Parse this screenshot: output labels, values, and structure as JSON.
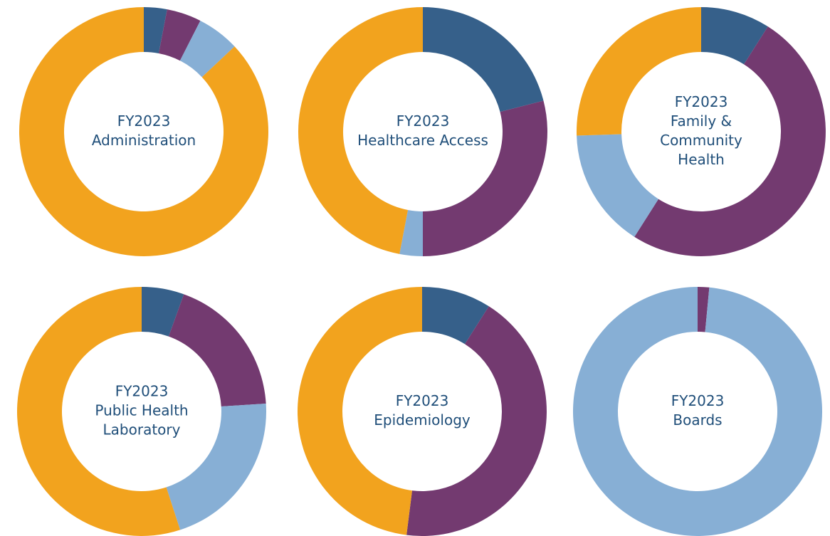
{
  "chart_data": [
    {
      "type": "donut",
      "title": [
        "FY2023",
        "Administration"
      ],
      "values": [
        3,
        4.5,
        5.5,
        87
      ],
      "colors": [
        "#36608a",
        "#733a70",
        "#87afd5",
        "#f2a31e"
      ]
    },
    {
      "type": "donut",
      "title": [
        "FY2023",
        "Healthcare Access"
      ],
      "values": [
        21,
        29,
        3,
        47
      ],
      "colors": [
        "#36608a",
        "#733a70",
        "#87afd5",
        "#f2a31e"
      ]
    },
    {
      "type": "donut",
      "title": [
        "FY2023",
        "Family &",
        "Community",
        "Health"
      ],
      "values": [
        9,
        50,
        15.5,
        25.5
      ],
      "colors": [
        "#36608a",
        "#733a70",
        "#87afd5",
        "#f2a31e"
      ]
    },
    {
      "type": "donut",
      "title": [
        "FY2023",
        "Public Health",
        "Laboratory"
      ],
      "values": [
        5.5,
        18.5,
        21,
        55
      ],
      "colors": [
        "#36608a",
        "#733a70",
        "#87afd5",
        "#f2a31e"
      ]
    },
    {
      "type": "donut",
      "title": [
        "FY2023",
        "Epidemiology"
      ],
      "values": [
        9,
        43,
        0,
        48
      ],
      "colors": [
        "#36608a",
        "#733a70",
        "#87afd5",
        "#f2a31e"
      ]
    },
    {
      "type": "donut",
      "title": [
        "FY2023",
        "Boards"
      ],
      "values": [
        0,
        1.5,
        98.5,
        0
      ],
      "colors": [
        "#36608a",
        "#733a70",
        "#87afd5",
        "#f2a31e"
      ]
    }
  ]
}
